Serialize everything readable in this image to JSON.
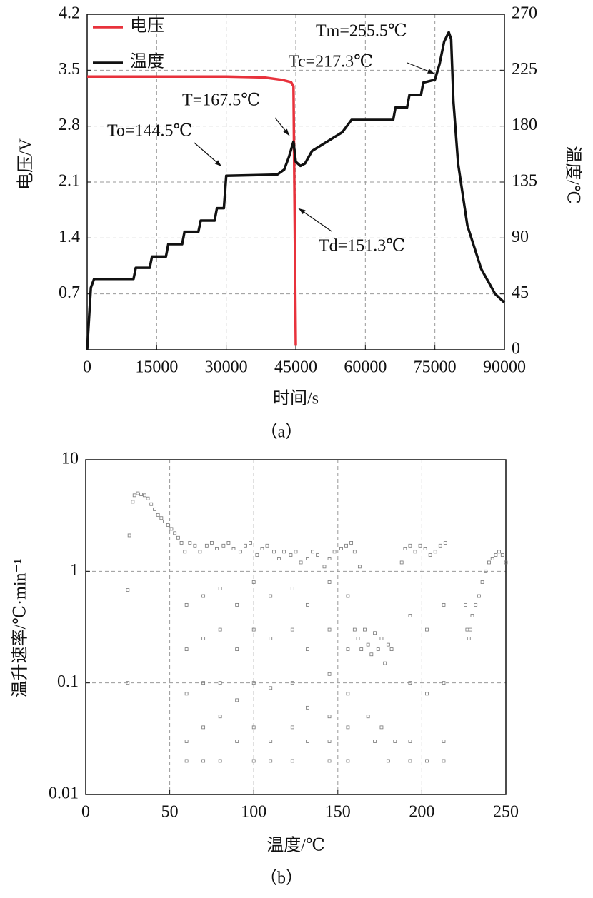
{
  "chart_data": [
    {
      "type": "line",
      "caption": "（a）",
      "x_label": "时间/s",
      "y_label": "电压/V",
      "y2_label": "温度/℃",
      "xlim": [
        0,
        90000
      ],
      "xticks": [
        0,
        15000,
        30000,
        45000,
        60000,
        75000,
        90000
      ],
      "ylim": [
        0,
        4.2
      ],
      "yticks": [
        0.7,
        1.4,
        2.1,
        2.8,
        3.5,
        4.2
      ],
      "y2lim": [
        0,
        270
      ],
      "y2ticks": [
        0,
        45,
        90,
        135,
        180,
        225,
        270
      ],
      "grid": true,
      "legend": "top-left",
      "series": [
        {
          "name": "电压",
          "color": "#e8323c",
          "x": [
            0,
            10000,
            20000,
            30000,
            38000,
            42000,
            44000,
            44500,
            44700,
            45000
          ],
          "values": [
            3.42,
            3.42,
            3.42,
            3.42,
            3.41,
            3.38,
            3.35,
            3.3,
            2.0,
            0.05
          ]
        },
        {
          "name": "温度",
          "color": "#111111",
          "axis": "y2",
          "x": [
            0,
            800,
            1500,
            10000,
            10500,
            13500,
            14000,
            17000,
            17500,
            20500,
            21000,
            24000,
            24500,
            27500,
            28000,
            29500,
            30000,
            41000,
            42500,
            43500,
            44500,
            45000,
            46000,
            47000,
            48500,
            55000,
            57000,
            66000,
            66500,
            69000,
            69500,
            72000,
            72500,
            75000,
            76000,
            77000,
            78000,
            78500,
            79000,
            80000,
            82000,
            85000,
            88000,
            90000
          ],
          "values": [
            0,
            50,
            57,
            57,
            66,
            66,
            75,
            75,
            85,
            85,
            95,
            95,
            104,
            104,
            114,
            114,
            140,
            141,
            145,
            155,
            167.5,
            151.3,
            148,
            150,
            160,
            175,
            185,
            185,
            195,
            195,
            205,
            205,
            215,
            217.3,
            230,
            248,
            255.5,
            250,
            200,
            150,
            100,
            65,
            45,
            38
          ]
        }
      ],
      "annotations": [
        "Tm=255.5℃",
        "Tc=217.3℃",
        "T=167.5℃",
        "To=144.5℃",
        "Td=151.3℃"
      ]
    },
    {
      "type": "scatter",
      "caption": "（b）",
      "x_label": "温度/℃",
      "y_label": "温升速率/℃·min⁻¹",
      "xlim": [
        0,
        250
      ],
      "xticks": [
        0,
        50,
        100,
        150,
        200,
        250
      ],
      "ylim": [
        0.01,
        10
      ],
      "yticks": [
        0.01,
        0.1,
        1,
        10
      ],
      "log_y": true,
      "grid": true,
      "series": [
        {
          "color": "#777777",
          "x": [
            25,
            25,
            26,
            28,
            29,
            31,
            33,
            35,
            37,
            39,
            41,
            43,
            45,
            47,
            49,
            51,
            53,
            55,
            57,
            59,
            62,
            65,
            68,
            72,
            75,
            78,
            82,
            85,
            88,
            92,
            95,
            98,
            102,
            105,
            108,
            112,
            115,
            118,
            122,
            125,
            128,
            132,
            135,
            138,
            142,
            145,
            148,
            152,
            155,
            158,
            160,
            163,
            60,
            60,
            60,
            60,
            60,
            70,
            70,
            70,
            70,
            70,
            80,
            80,
            80,
            80,
            80,
            90,
            90,
            90,
            90,
            100,
            100,
            100,
            100,
            100,
            110,
            110,
            110,
            110,
            110,
            123,
            123,
            123,
            123,
            123,
            132,
            132,
            132,
            132,
            145,
            145,
            145,
            145,
            145,
            145,
            156,
            156,
            156,
            156,
            156,
            160,
            162,
            164,
            166,
            168,
            170,
            172,
            174,
            176,
            178,
            180,
            182,
            168,
            172,
            176,
            180,
            184,
            188,
            190,
            193,
            196,
            199,
            202,
            205,
            208,
            211,
            214,
            193,
            193,
            193,
            193,
            203,
            203,
            203,
            213,
            213,
            213,
            213,
            226,
            227,
            228,
            229,
            230,
            232,
            234,
            236,
            238,
            240,
            242,
            244,
            246,
            248,
            250
          ],
          "values": [
            0.1,
            0.68,
            2.1,
            4.2,
            4.8,
            5,
            4.9,
            4.8,
            4.5,
            4,
            3.6,
            3.2,
            3,
            2.8,
            2.6,
            2.4,
            2.2,
            2,
            1.8,
            1.5,
            1.8,
            1.7,
            1.5,
            1.7,
            1.8,
            1.6,
            1.7,
            1.8,
            1.6,
            1.5,
            1.7,
            1.8,
            1.4,
            1.6,
            1.7,
            1.5,
            1.3,
            1.5,
            1.4,
            1.5,
            1.2,
            1.3,
            1.5,
            1.4,
            1.1,
            1.3,
            1.5,
            1.6,
            1.7,
            1.8,
            1.5,
            1.1,
            0.5,
            0.2,
            0.08,
            0.03,
            0.02,
            0.6,
            0.25,
            0.1,
            0.04,
            0.02,
            0.7,
            0.3,
            0.1,
            0.05,
            0.02,
            0.5,
            0.2,
            0.07,
            0.03,
            0.8,
            0.3,
            0.1,
            0.04,
            0.02,
            0.6,
            0.25,
            0.09,
            0.03,
            0.02,
            0.7,
            0.3,
            0.1,
            0.04,
            0.02,
            0.5,
            0.2,
            0.06,
            0.03,
            0.8,
            0.3,
            0.12,
            0.05,
            0.03,
            0.02,
            0.6,
            0.2,
            0.08,
            0.04,
            0.02,
            0.3,
            0.25,
            0.2,
            0.3,
            0.22,
            0.18,
            0.28,
            0.2,
            0.25,
            0.15,
            0.22,
            0.2,
            0.05,
            0.03,
            0.04,
            0.02,
            0.03,
            1.2,
            1.6,
            1.7,
            1.5,
            1.7,
            1.6,
            1.4,
            1.5,
            1.7,
            1.8,
            0.4,
            0.1,
            0.03,
            0.02,
            0.3,
            0.08,
            0.02,
            0.5,
            0.1,
            0.03,
            0.02,
            0.5,
            0.3,
            0.25,
            0.3,
            0.4,
            0.5,
            0.6,
            0.8,
            1,
            1.2,
            1.3,
            1.4,
            1.5,
            1.4,
            1.2
          ]
        }
      ]
    }
  ]
}
